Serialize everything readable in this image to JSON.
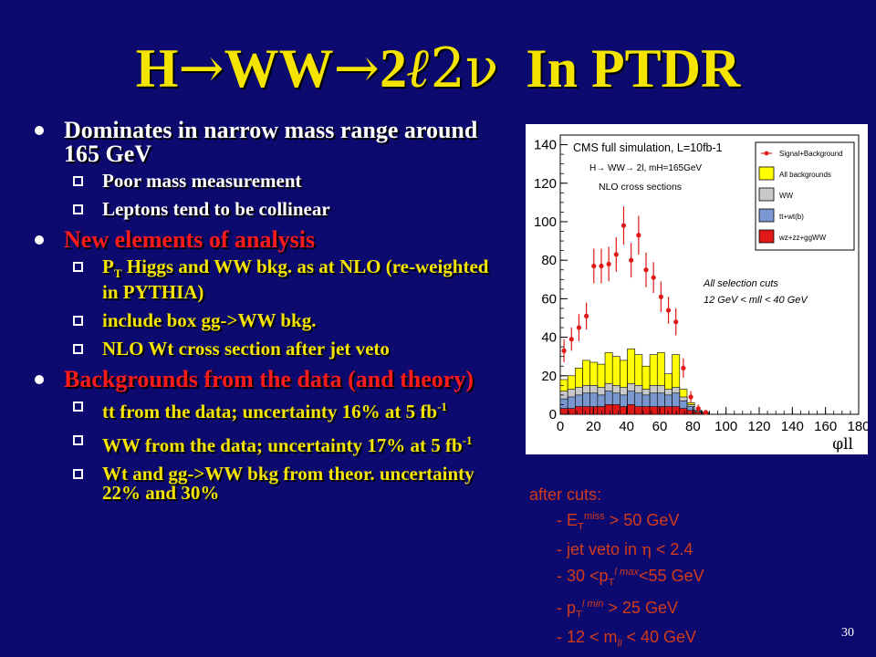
{
  "title": {
    "h": "H",
    "arrow1": "→",
    "ww": "WW",
    "arrow2": "→",
    "two": "2",
    "ell": "ℓ",
    "nu": "2ν",
    "rest": "  In PTDR"
  },
  "bullets": [
    {
      "text": "Dominates in narrow mass range around 165 GeV",
      "color": "#ffffff",
      "sub": [
        {
          "text": "Poor mass measurement",
          "color": "#ffffff"
        },
        {
          "text": "Leptons tend to be collinear",
          "color": "#ffffff"
        }
      ]
    },
    {
      "text": "New elements of analysis",
      "color": "#ff1a1a",
      "sub": [
        {
          "pre": "P",
          "sub": "T",
          "post": " Higgs and WW bkg. as at NLO (re-weighted in PYTHIA)",
          "color": "#f5e400"
        },
        {
          "text": "include box gg->WW bkg.",
          "color": "#f5e400"
        },
        {
          "text": "NLO Wt cross section after jet veto",
          "color": "#f5e400"
        }
      ]
    },
    {
      "text": "Backgrounds from the data (and theory)",
      "color": "#ff1a1a",
      "sub": [
        {
          "pre": "tt from  the data; uncertainty 16% at 5 fb",
          "sup": "-1",
          "color": "#f5e400"
        },
        {
          "pre": "WW from the data; uncertainty 17% at 5 fb",
          "sup": "-1",
          "color": "#f5e400"
        },
        {
          "text": "Wt and gg->WW bkg from theor. uncertainty 22% and 30%",
          "color": "#f5e400"
        }
      ]
    }
  ],
  "chart_data": {
    "type": "bar",
    "annotations": [
      "CMS full simulation, L=10fb-1",
      "H→ WW→ 2l, mH=165GeV",
      "NLO cross sections",
      "All selection cuts",
      "12 GeV < mll < 40 GeV"
    ],
    "xlabel": "φll",
    "xlim": [
      0,
      180
    ],
    "ylim": [
      0,
      145
    ],
    "xticks": [
      0,
      20,
      40,
      60,
      80,
      100,
      120,
      140,
      160,
      180
    ],
    "yticks": [
      0,
      20,
      40,
      60,
      80,
      100,
      120,
      140
    ],
    "bin_width": 4.5,
    "bin_edges_start": 0,
    "legend": [
      {
        "label": "Signal+Background",
        "color": "#e01818",
        "kind": "marker"
      },
      {
        "label": "All backgrounds",
        "color": "#ffff00",
        "kind": "box"
      },
      {
        "label": "WW",
        "color": "#c8c8c8",
        "kind": "box"
      },
      {
        "label": "tt+wt(b)",
        "color": "#7a97cf",
        "kind": "box"
      },
      {
        "label": "wz+zz+ggWW",
        "color": "#e01818",
        "kind": "box"
      }
    ],
    "series": [
      {
        "name": "All backgrounds",
        "color": "#ffff00",
        "values": [
          18,
          20,
          24,
          28,
          27,
          26,
          32,
          30,
          28,
          34,
          31,
          25,
          31,
          32,
          21,
          31,
          13,
          6,
          2,
          1
        ]
      },
      {
        "name": "WW",
        "color": "#c8c8c8",
        "values": [
          12,
          13,
          14,
          15,
          15,
          14,
          16,
          15,
          14,
          16,
          15,
          13,
          15,
          15,
          13,
          14,
          9,
          5,
          2,
          1
        ]
      },
      {
        "name": "tt+wt(b)",
        "color": "#7a97cf",
        "values": [
          8,
          9,
          10,
          11,
          11,
          10,
          12,
          11,
          10,
          12,
          11,
          10,
          11,
          11,
          10,
          11,
          7,
          4,
          1.5,
          0.5
        ]
      },
      {
        "name": "wz+zz+ggWW",
        "color": "#e01818",
        "values": [
          3,
          3,
          4,
          4,
          4,
          4,
          5,
          5,
          4,
          5,
          4,
          4,
          4,
          4,
          4,
          4,
          3,
          2,
          1,
          0.5
        ]
      },
      {
        "name": "Signal+Background",
        "color": "#e01818",
        "kind": "points",
        "x": [
          2.25,
          6.75,
          11.25,
          15.75,
          20.25,
          24.75,
          29.25,
          33.75,
          38.25,
          42.75,
          47.25,
          51.75,
          56.25,
          60.75,
          65.25,
          69.75,
          74.25,
          78.75,
          83.25,
          87.75
        ],
        "values": [
          33,
          39,
          45,
          51,
          77,
          77,
          78,
          83,
          98,
          80,
          93,
          75,
          71,
          61,
          54,
          48,
          24,
          9,
          3,
          1
        ],
        "errors": [
          6,
          6,
          7,
          7,
          9,
          9,
          9,
          9,
          10,
          9,
          10,
          9,
          8,
          8,
          7,
          7,
          5,
          3,
          2,
          1
        ]
      }
    ]
  },
  "cuts": {
    "header": "after cuts:",
    "l1_pre": "- E",
    "l1_sub": "T",
    "l1_sup": "miss",
    "l1_post": " > 50 GeV",
    "l2_pre": "- jet veto in ",
    "l2_eta": "η",
    "l2_post": " < 2.4",
    "l3_pre": "- 30 <p",
    "l3_sub": "T",
    "l3_sup": "l max",
    "l3_post": "<55 GeV",
    "l4_pre": "- p",
    "l4_sub": "T",
    "l4_sup": "l min",
    "l4_post": " > 25 GeV",
    "l5_pre": "- 12 < m",
    "l5_sub": "ll",
    "l5_post": " < 40 GeV"
  },
  "page_number": "30"
}
